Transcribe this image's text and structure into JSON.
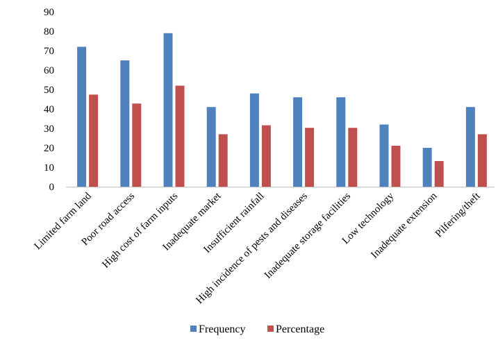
{
  "chart_data": {
    "type": "bar",
    "title": "",
    "xlabel": "",
    "ylabel": "",
    "ylim": [
      0,
      90
    ],
    "yticks": [
      0,
      10,
      20,
      30,
      40,
      50,
      60,
      70,
      80,
      90
    ],
    "grid": false,
    "legend_position": "bottom",
    "categories": [
      "Limited farm land",
      "Poor road access",
      "High cost of farm inputs",
      "Inadequate market",
      "Insufficient rainfall",
      "High incidence of pests and diseases",
      "Inadequate storage facilities",
      "Low technology",
      "Inadequate extension",
      "Pilfering/theft"
    ],
    "series": [
      {
        "name": "Frequency",
        "color": "#4F81BD",
        "values": [
          72,
          65,
          79,
          41,
          48,
          46,
          46,
          32,
          20,
          41
        ]
      },
      {
        "name": "Percentage",
        "color": "#C0504D",
        "values": [
          47.4,
          42.8,
          52.0,
          27.0,
          31.6,
          30.3,
          30.3,
          21.1,
          13.2,
          27.0
        ]
      }
    ]
  }
}
